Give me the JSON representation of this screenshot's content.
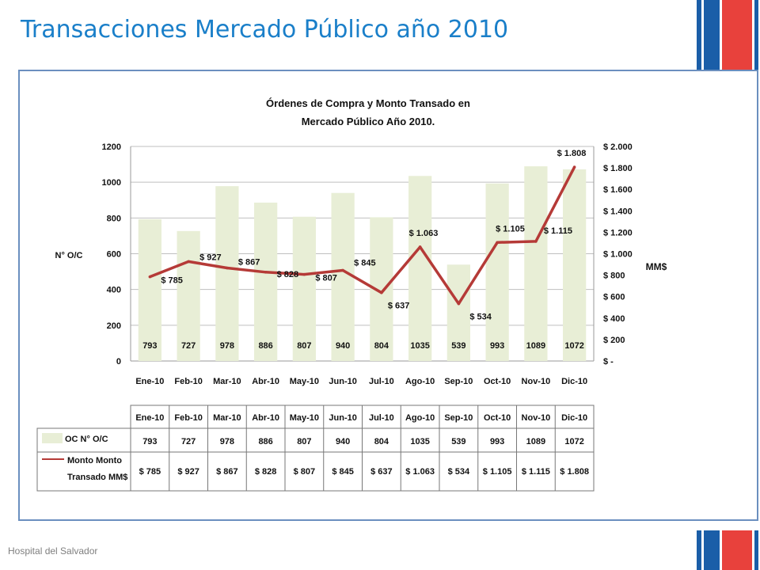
{
  "slide": {
    "title": "Transacciones Mercado Público año 2010",
    "footer": "Hospital del Salvador"
  },
  "colors": {
    "title": "#1a7fc9",
    "bars": "#e8eed6",
    "line": "#b53a37",
    "flag_blue": "#1a5ea8",
    "flag_red": "#e8413c",
    "frame": "#6b8fbf"
  },
  "chart_data": {
    "type": "bar",
    "title": [
      "Órdenes de Compra y Monto Transado  en",
      "Mercado Público Año 2010."
    ],
    "categories": [
      "Ene-10",
      "Feb-10",
      "Mar-10",
      "Abr-10",
      "May-10",
      "Jun-10",
      "Jul-10",
      "Ago-10",
      "Sep-10",
      "Oct-10",
      "Nov-10",
      "Dic-10"
    ],
    "series": [
      {
        "name": "OC N° O/C",
        "type": "bar",
        "axis": "left",
        "values": [
          793,
          727,
          978,
          886,
          807,
          940,
          804,
          1035,
          539,
          993,
          1089,
          1072
        ],
        "labels": [
          "793",
          "727",
          "978",
          "886",
          "807",
          "940",
          "804",
          "1035",
          "539",
          "993",
          "1089",
          "1072"
        ]
      },
      {
        "name": "Monto Monto Transado MM$",
        "legend_lines": [
          "Monto Monto",
          "Transado MM$"
        ],
        "type": "line",
        "axis": "right",
        "values": [
          785,
          927,
          867,
          828,
          807,
          845,
          637,
          1063,
          534,
          1105,
          1115,
          1808
        ],
        "labels": [
          "$ 785",
          "$ 927",
          "$ 867",
          "$ 828",
          "$ 807",
          "$ 845",
          "$ 637",
          "$ 1.063",
          "$ 534",
          "$ 1.105",
          "$ 1.115",
          "$ 1.808"
        ]
      }
    ],
    "y_left": {
      "label": "N° O/C",
      "range": [
        0,
        1200
      ],
      "ticks": [
        0,
        200,
        400,
        600,
        800,
        1000,
        1200
      ],
      "tick_labels": [
        "0",
        "200",
        "400",
        "600",
        "800",
        "1000",
        "1200"
      ]
    },
    "y_right": {
      "label": "MM$",
      "range": [
        0,
        2000
      ],
      "ticks": [
        0,
        200,
        400,
        600,
        800,
        1000,
        1200,
        1400,
        1600,
        1800,
        2000
      ],
      "tick_labels": [
        "$ -",
        "$ 200",
        "$ 400",
        "$ 600",
        "$ 800",
        "$ 1.000",
        "$ 1.200",
        "$ 1.400",
        "$ 1.600",
        "$ 1.800",
        "$ 2.000"
      ]
    },
    "grid": true,
    "legend_position": "data-table",
    "data_table": true
  }
}
